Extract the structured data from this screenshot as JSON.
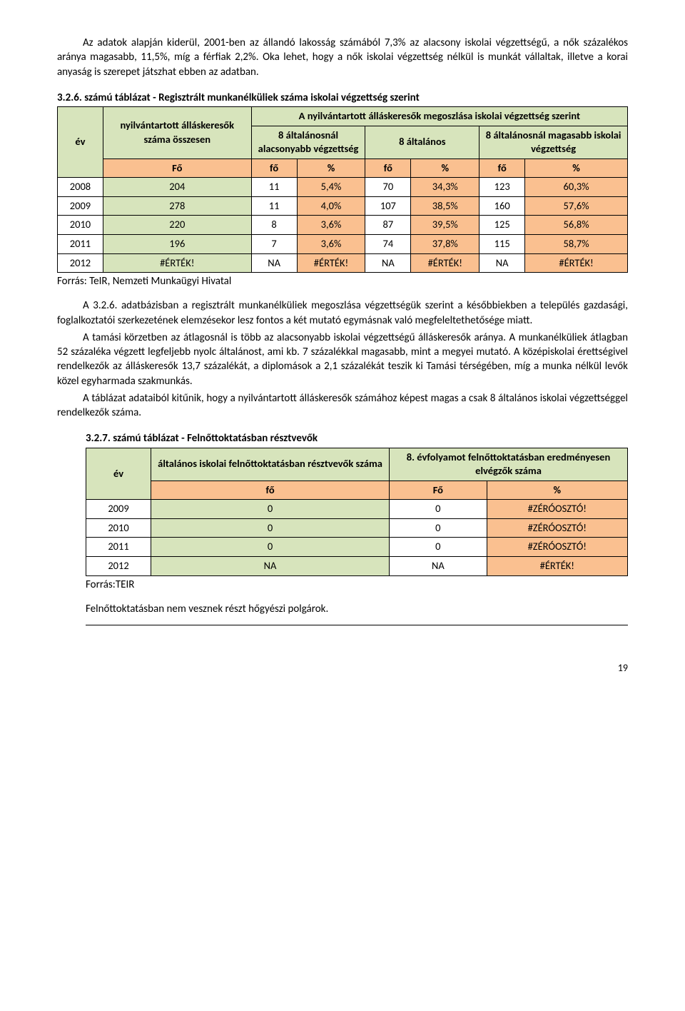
{
  "p1": "Az adatok alapján kiderül, 2001-ben az állandó lakosság számából 7,3% az alacsony iskolai végzettségű, a nők százalékos aránya magasabb, 11,5%, míg a férfiak 2,2%. Oka lehet, hogy a nők iskolai végzettség nélkül is munkát vállaltak, illetve a korai anyaság is szerepet játszhat ebben az adatban.",
  "t1": {
    "title": "3.2.6. számú táblázat - Regisztrált munkanélküliek száma iskolai végzettség szerint",
    "colors": {
      "green": "#d7e4bc",
      "orange": "#fac090"
    },
    "h_ev": "év",
    "h_nyilv": "nyilvántartott álláskeresők száma összesen",
    "h_megoszlas": "A nyilvántartott álláskeresők megoszlása iskolai végzettség szerint",
    "h_8alac": "8 általánosnál alacsonyabb végzettség",
    "h_8alt": "8 általános",
    "h_8mag": "8 általánosnál magasabb iskolai végzettség",
    "h_Fo1": "Fő",
    "h_fo2": "fő",
    "h_pct": "%",
    "rows": [
      {
        "y": "2008",
        "tot": "204",
        "a_f": "11",
        "a_p": "5,4%",
        "b_f": "70",
        "b_p": "34,3%",
        "c_f": "123",
        "c_p": "60,3%"
      },
      {
        "y": "2009",
        "tot": "278",
        "a_f": "11",
        "a_p": "4,0%",
        "b_f": "107",
        "b_p": "38,5%",
        "c_f": "160",
        "c_p": "57,6%"
      },
      {
        "y": "2010",
        "tot": "220",
        "a_f": "8",
        "a_p": "3,6%",
        "b_f": "87",
        "b_p": "39,5%",
        "c_f": "125",
        "c_p": "56,8%"
      },
      {
        "y": "2011",
        "tot": "196",
        "a_f": "7",
        "a_p": "3,6%",
        "b_f": "74",
        "b_p": "37,8%",
        "c_f": "115",
        "c_p": "58,7%"
      },
      {
        "y": "2012",
        "tot": "#ÉRTÉK!",
        "a_f": "NA",
        "a_p": "#ÉRTÉK!",
        "b_f": "NA",
        "b_p": "#ÉRTÉK!",
        "c_f": "NA",
        "c_p": "#ÉRTÉK!"
      }
    ],
    "source": "Forrás: TeIR, Nemzeti Munkaügyi Hivatal"
  },
  "p2": "A 3.2.6. adatbázisban a regisztrált munkanélküliek megoszlása végzettségük szerint a későbbiekben a település gazdasági, foglalkoztatói szerkezetének elemzésekor lesz fontos a két mutató egymásnak való megfeleltethetősége miatt.",
  "p3": "A tamási körzetben az átlagosnál is több az alacsonyabb iskolai végzettségű álláskeresők aránya. A munkanélküliek átlagban 52 százaléka végzett legfeljebb nyolc általánost, ami kb. 7 százalékkal magasabb, mint a megyei mutató. A középiskolai érettségivel rendelkezők az álláskeresők 13,7 százalékát, a diplomások a 2,1 százalékát teszik ki Tamási térségében, míg a munka nélkül levők közel egyharmada szakmunkás.",
  "p4": "A táblázat adataiból kitűnik, hogy a nyilvántartott álláskeresők számához képest magas a csak 8 általános iskolai végzettséggel rendelkezők száma.",
  "t2": {
    "title": "3.2.7. számú táblázat - Felnőttoktatásban résztvevők",
    "h_ev": "év",
    "h_alt": "általános iskolai felnőttoktatásban résztvevők száma",
    "h_8ev": "8. évfolyamot felnőttoktatásban eredményesen elvégzők száma",
    "h_fo": "fő",
    "h_Fo": "Fő",
    "h_pct": "%",
    "rows": [
      {
        "y": "2009",
        "a": "0",
        "b": "0",
        "c": "#ZÉRÓOSZTÓ!"
      },
      {
        "y": "2010",
        "a": "0",
        "b": "0",
        "c": "#ZÉRÓOSZTÓ!"
      },
      {
        "y": "2011",
        "a": "0",
        "b": "0",
        "c": "#ZÉRÓOSZTÓ!"
      },
      {
        "y": "2012",
        "a": "NA",
        "b": "NA",
        "c": "#ÉRTÉK!"
      }
    ],
    "source": "Forrás:TEIR"
  },
  "p5": "Felnőttoktatásban nem vesznek részt hőgyészi polgárok.",
  "pagenum": "19"
}
